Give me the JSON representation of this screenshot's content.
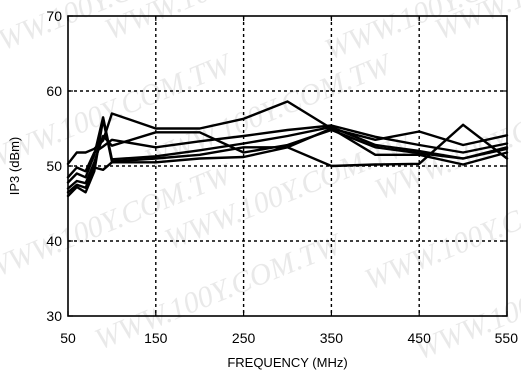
{
  "chart_data": {
    "type": "line",
    "title": "",
    "xlabel": "FREQUENCY (MHz)",
    "ylabel": "IP3 (dBm)",
    "xlim": [
      50,
      550
    ],
    "ylim": [
      30,
      70
    ],
    "x_ticks": [
      50,
      150,
      250,
      350,
      450,
      550
    ],
    "y_ticks": [
      30,
      40,
      50,
      60,
      70
    ],
    "grid": true,
    "grid_style": "dashed",
    "line_color": "#000000",
    "series": [
      {
        "x": [
          50,
          60,
          70,
          80,
          90,
          100,
          150,
          200,
          250,
          300,
          350,
          400,
          450,
          500,
          550
        ],
        "values": [
          50.3,
          51.8,
          51.8,
          52.3,
          53.4,
          57.0,
          55.0,
          55.0,
          56.3,
          58.6,
          55.0,
          53.5,
          54.6,
          52.8,
          54.1
        ]
      },
      {
        "x": [
          50,
          60,
          70,
          80,
          90,
          100,
          150,
          200,
          250,
          300,
          350,
          400,
          450,
          500,
          550
        ],
        "values": [
          48.5,
          49.8,
          49.3,
          51.8,
          52.6,
          53.5,
          52.5,
          53.3,
          54.0,
          54.8,
          55.4,
          53.9,
          52.8,
          51.8,
          53.0
        ]
      },
      {
        "x": [
          50,
          60,
          70,
          80,
          90,
          100,
          150,
          200,
          250,
          300,
          350,
          400,
          450,
          500,
          550
        ],
        "values": [
          47.8,
          49.0,
          48.5,
          51.5,
          56.5,
          50.9,
          51.3,
          52.1,
          53.0,
          54.0,
          55.2,
          52.8,
          52.0,
          51.0,
          52.5
        ]
      },
      {
        "x": [
          50,
          60,
          70,
          80,
          90,
          100,
          150,
          200,
          250,
          300,
          350,
          400,
          450,
          500,
          550
        ],
        "values": [
          47.0,
          48.0,
          47.7,
          50.5,
          54.0,
          52.7,
          54.5,
          54.5,
          51.8,
          52.8,
          54.8,
          52.5,
          51.7,
          51.0,
          52.3
        ]
      },
      {
        "x": [
          50,
          60,
          70,
          80,
          90,
          100,
          150,
          200,
          250,
          300,
          350,
          400,
          450,
          500,
          550
        ],
        "values": [
          46.5,
          47.5,
          47.1,
          49.8,
          49.5,
          50.5,
          50.5,
          51.0,
          51.2,
          52.5,
          50.0,
          50.2,
          50.3,
          55.5,
          51.0
        ]
      },
      {
        "x": [
          50,
          60,
          70,
          80,
          90,
          100,
          150,
          200,
          250,
          300,
          350,
          400,
          450,
          500,
          550
        ],
        "values": [
          46.0,
          47.2,
          46.5,
          49.3,
          56.2,
          50.6,
          51.0,
          51.5,
          52.5,
          52.5,
          55.0,
          51.5,
          51.5,
          50.2,
          51.8
        ]
      }
    ]
  },
  "watermark": {
    "text": "WWW.100Y.COM.TW",
    "color": "#cfcfcf"
  }
}
